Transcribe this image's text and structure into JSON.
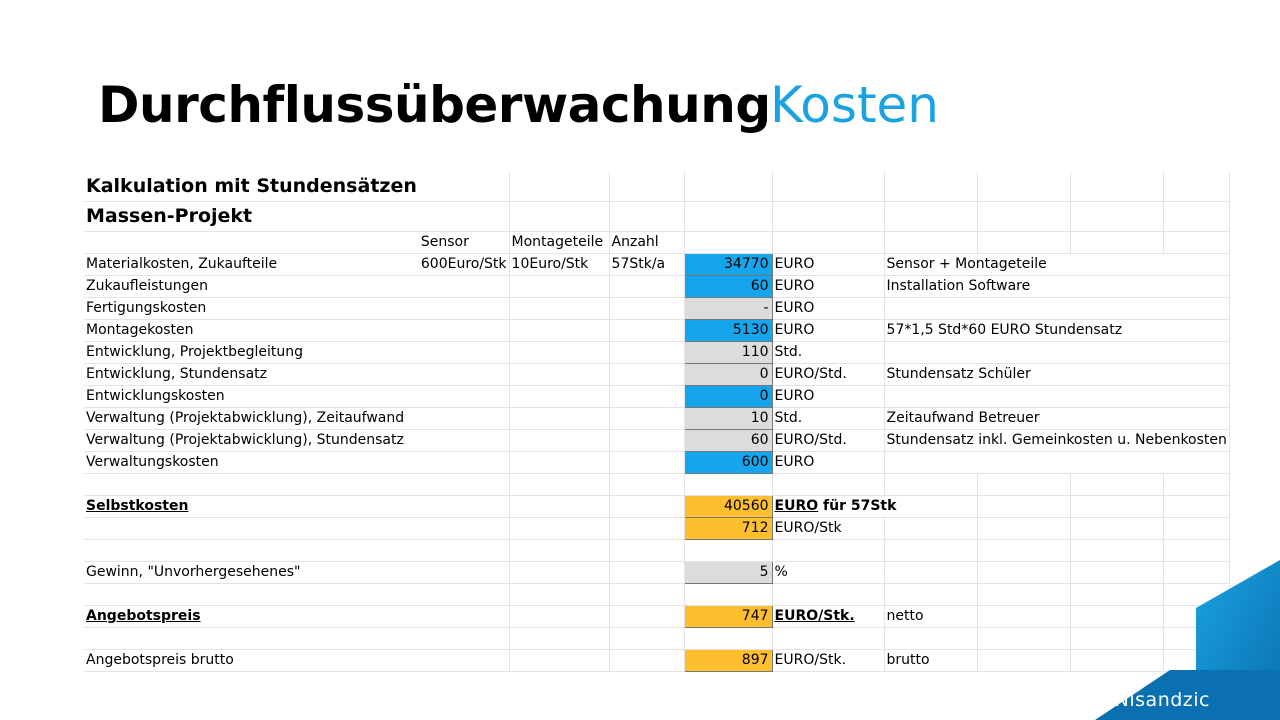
{
  "slide": {
    "title": "Durchflussüberwachung",
    "subtitle": "Kosten",
    "footer": "Nisandzic"
  },
  "colors": {
    "accent": "#1aa3e0",
    "blue_cell": "#14a5ec",
    "gray_cell": "#dcdcdc",
    "orange_cell": "#fdbf2d"
  },
  "sheet": {
    "heading1": "Kalkulation mit Stundensätzen",
    "heading2": "Massen-Projekt",
    "col_headers": [
      "Sensor",
      "Montageteile",
      "Anzahl"
    ],
    "rows": [
      {
        "label": "Materialkosten, Zukaufteile",
        "sensor": "600Euro/Stk",
        "montage": "10Euro/Stk",
        "anzahl": "57Stk/a",
        "value": "34770",
        "unit": "EURO",
        "note": "Sensor + Montageteile"
      },
      {
        "label": "Zukaufleistungen",
        "value": "60",
        "unit": "EURO",
        "note": "Installation Software"
      },
      {
        "label": "Fertigungskosten",
        "value": "-",
        "unit": "EURO",
        "note": ""
      },
      {
        "label": "Montagekosten",
        "value": "5130",
        "unit": "EURO",
        "note": "57*1,5 Std*60 EURO Stundensatz"
      },
      {
        "label": "Entwicklung, Projektbegleitung",
        "value": "110",
        "unit": "Std.",
        "note": ""
      },
      {
        "label": "Entwicklung, Stundensatz",
        "value": "0",
        "unit": "EURO/Std.",
        "note": "Stundensatz Schüler"
      },
      {
        "label": "Entwicklungskosten",
        "value": "0",
        "unit": "EURO",
        "note": ""
      },
      {
        "label": "Verwaltung (Projektabwicklung), Zeitaufwand",
        "value": "10",
        "unit": "Std.",
        "note": "Zeitaufwand Betreuer"
      },
      {
        "label": "Verwaltung (Projektabwicklung), Stundensatz",
        "value": "60",
        "unit": "EURO/Std.",
        "note": "Stundensatz inkl. Gemeinkosten u. Nebenkosten"
      },
      {
        "label": "Verwaltungskosten",
        "value": "600",
        "unit": "EURO",
        "note": ""
      }
    ],
    "selbstkosten": {
      "label": "Selbstkosten",
      "value": "40560",
      "unit_main": "EURO",
      "unit_rest": " für 57Stk",
      "per_piece_value": "712",
      "per_piece_unit": "EURO/Stk"
    },
    "gewinn": {
      "label": "Gewinn, \"Unvorhergesehenes\"",
      "value": "5",
      "unit": "%"
    },
    "angebot": {
      "label": "Angebotspreis",
      "value": "747",
      "unit": "EURO/Stk.",
      "note": "netto"
    },
    "angebot_brutto": {
      "label": "Angebotspreis brutto",
      "value": "897",
      "unit": "EURO/Stk.",
      "note": "brutto"
    }
  }
}
